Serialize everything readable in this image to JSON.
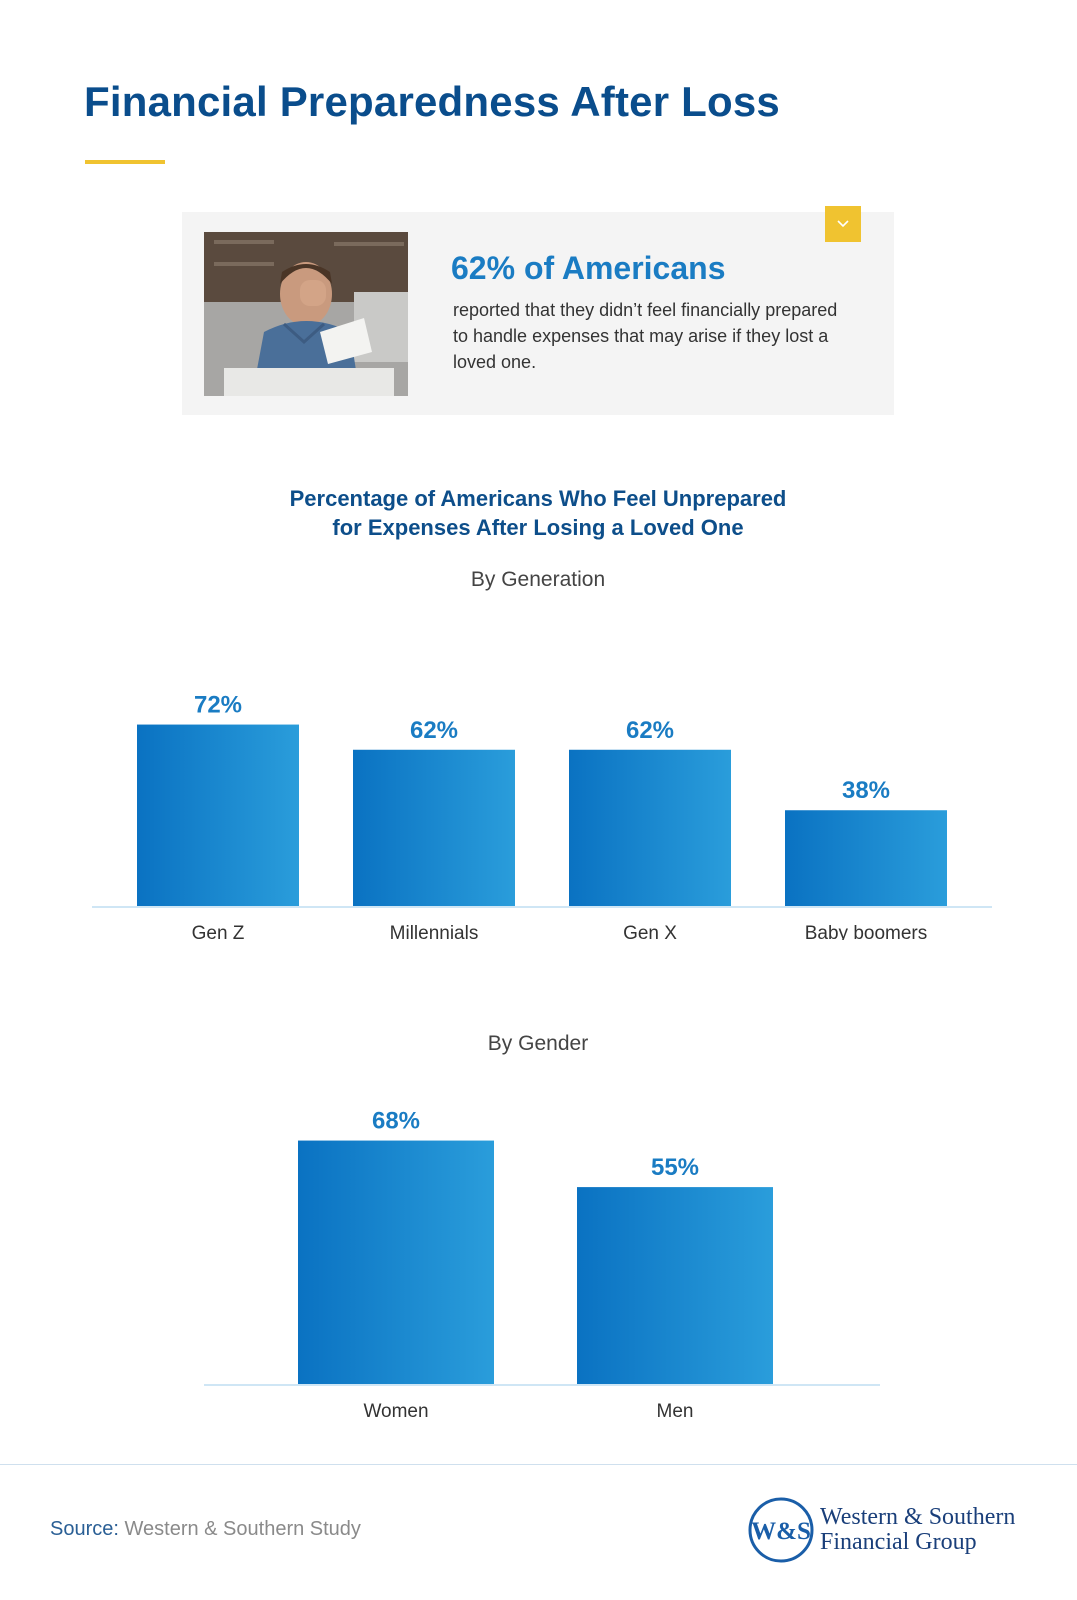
{
  "page": {
    "title": "Financial Preparedness After Loss"
  },
  "stat_card": {
    "headline": "62% of Americans",
    "body": "reported that they didn’t feel financially prepared to handle expenses that may arise if they lost a loved one.",
    "toggle_icon": "chevron-down-icon",
    "accent_color": "#f0c330"
  },
  "chart_section": {
    "title_line1": "Percentage of Americans Who Feel Unprepared",
    "title_line2": "for Expenses After Losing a Loved One"
  },
  "chart_data": [
    {
      "type": "bar",
      "title": "By Generation",
      "categories": [
        "Gen Z",
        "Millennials",
        "Gen X",
        "Baby boomers"
      ],
      "values": [
        72,
        62,
        62,
        38
      ],
      "value_labels": [
        "72%",
        "62%",
        "62%",
        "38%"
      ],
      "ylim": [
        0,
        100
      ],
      "grid": false,
      "colors": {
        "bar_start": "#0a72c2",
        "bar_end": "#2a9ddb",
        "label": "#1a7cc3"
      }
    },
    {
      "type": "bar",
      "title": "By Gender",
      "categories": [
        "Women",
        "Men"
      ],
      "values": [
        68,
        55
      ],
      "value_labels": [
        "68%",
        "55%"
      ],
      "ylim": [
        0,
        100
      ],
      "grid": false,
      "colors": {
        "bar_start": "#0a72c2",
        "bar_end": "#2a9ddb",
        "label": "#1a7cc3"
      }
    }
  ],
  "footer": {
    "source_label": "Source:",
    "source_value": "Western & Southern Study",
    "brand_line1": "Western & Southern",
    "brand_line2": "Financial Group",
    "brand_monogram": "W&S"
  }
}
